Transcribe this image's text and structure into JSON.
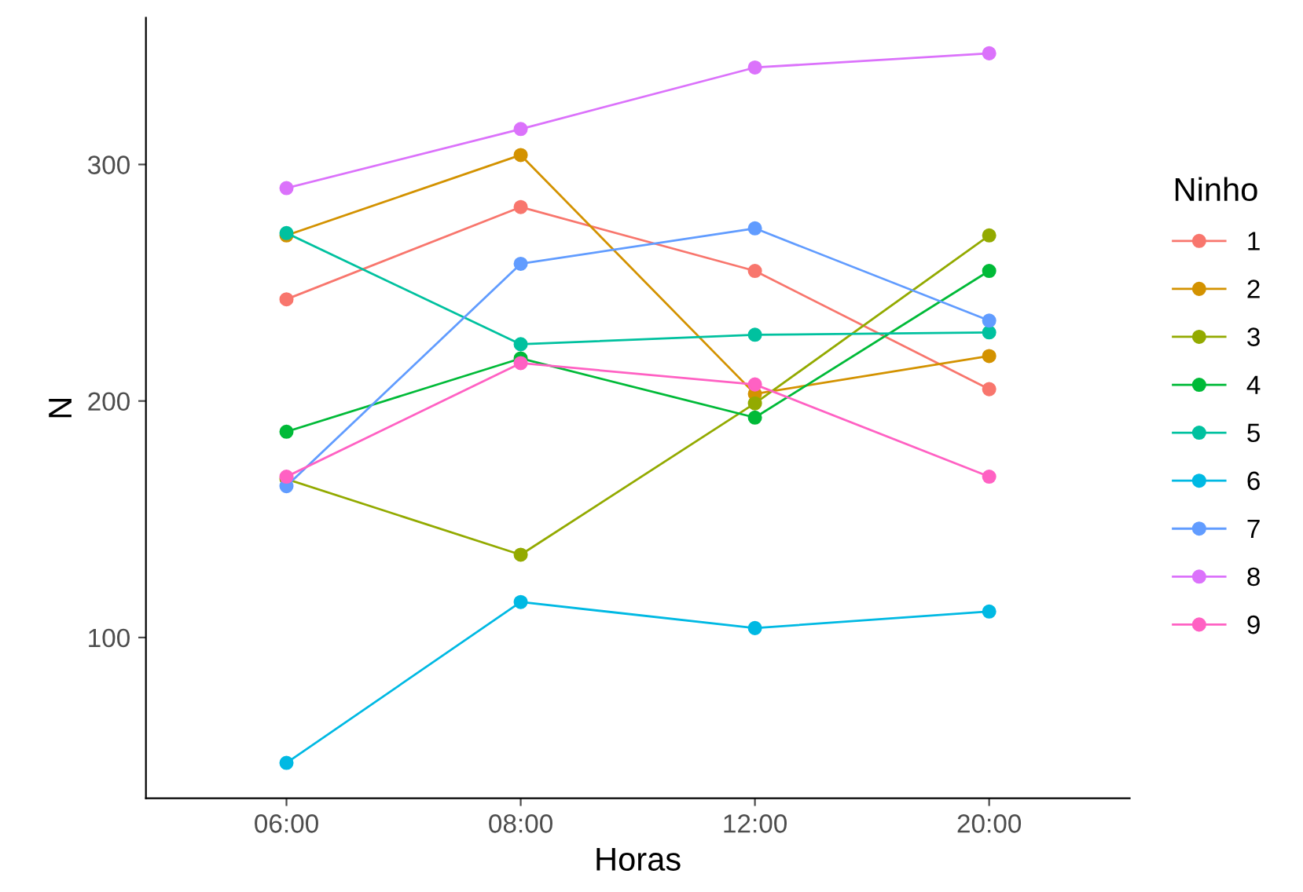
{
  "chart_data": {
    "type": "line",
    "xlabel": "Horas",
    "ylabel": "N",
    "legend_title": "Ninho",
    "categories": [
      "06:00",
      "08:00",
      "12:00",
      "20:00"
    ],
    "ylim": [
      32,
      362
    ],
    "yticks": [
      100,
      200,
      300
    ],
    "grid": false,
    "legend": "right",
    "marker": "circle",
    "line_style": "solid",
    "series": [
      {
        "name": "1",
        "color": "#f8766d",
        "values": [
          243,
          282,
          255,
          205
        ]
      },
      {
        "name": "2",
        "color": "#d39200",
        "values": [
          270,
          304,
          203,
          219
        ]
      },
      {
        "name": "3",
        "color": "#93aa00",
        "values": [
          167,
          135,
          199,
          270
        ]
      },
      {
        "name": "4",
        "color": "#00ba38",
        "values": [
          187,
          218,
          193,
          255
        ]
      },
      {
        "name": "5",
        "color": "#00c19f",
        "values": [
          271,
          224,
          228,
          229
        ]
      },
      {
        "name": "6",
        "color": "#00b9e3",
        "values": [
          47,
          115,
          104,
          111
        ]
      },
      {
        "name": "7",
        "color": "#619cff",
        "values": [
          164,
          258,
          273,
          234
        ]
      },
      {
        "name": "8",
        "color": "#db72fb",
        "values": [
          290,
          315,
          341,
          347
        ]
      },
      {
        "name": "9",
        "color": "#ff61c3",
        "values": [
          168,
          216,
          207,
          168
        ]
      }
    ]
  }
}
